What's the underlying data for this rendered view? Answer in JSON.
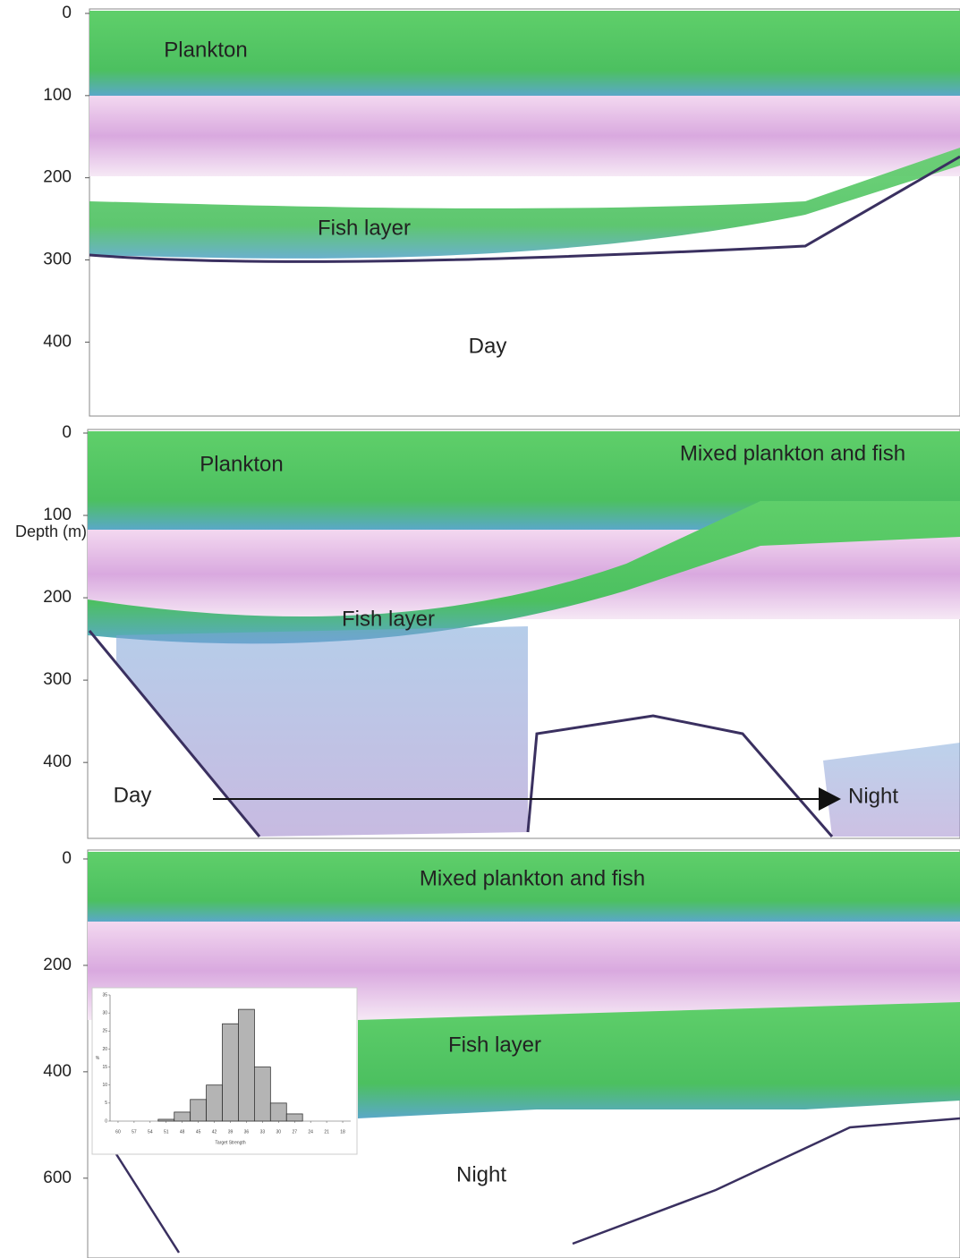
{
  "y_axis_label": "Depth (m)",
  "echograms": [
    {
      "ylim": [
        0,
        490
      ],
      "yticks": [
        0,
        100,
        200,
        300,
        400
      ],
      "labels": [
        "Plankton",
        "Fish layer",
        "Day"
      ]
    },
    {
      "ylim": [
        0,
        490
      ],
      "yticks": [
        0,
        100,
        200,
        300,
        400
      ],
      "labels": [
        "Plankton",
        "Mixed plankton and fish",
        "Fish layer",
        "Day",
        "Night"
      ]
    },
    {
      "ylim": [
        0,
        750
      ],
      "yticks": [
        0,
        200,
        400,
        600
      ],
      "labels": [
        "Mixed plankton and fish",
        "Fish layer",
        "Night"
      ]
    }
  ],
  "chart_data": {
    "type": "histogram",
    "x_label": "Target Strength",
    "y_label": "%",
    "bins": [
      52.5,
      49.5,
      46.5,
      43.5,
      40.5,
      37.5,
      34.5,
      31.5,
      28.5,
      25.5
    ],
    "values": [
      0.5,
      2.5,
      6,
      10,
      27,
      31,
      15,
      5,
      2
    ],
    "color": "#b4b4b4",
    "xlim": [
      61.5,
      16.5
    ],
    "xticks": [
      60,
      57,
      54,
      51,
      48,
      45,
      42,
      39,
      36,
      33,
      30,
      27,
      24,
      21,
      18
    ],
    "ylim": [
      0,
      35
    ],
    "yticks": [
      0,
      5,
      10,
      15,
      20,
      25,
      30,
      35
    ]
  }
}
